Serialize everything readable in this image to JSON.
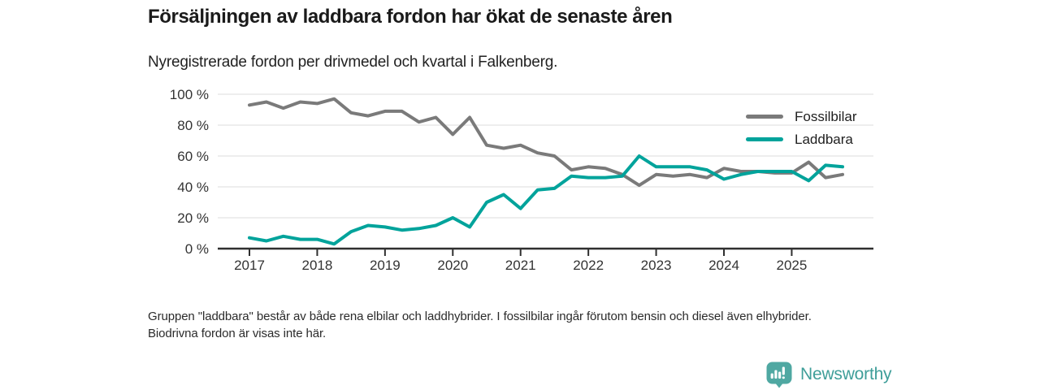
{
  "header": {
    "title": "Försäljningen av laddbara fordon har ökat de senaste åren",
    "subtitle": "Nyregistrerade fordon per drivmedel och kvartal i Falkenberg."
  },
  "chart_data": {
    "type": "line",
    "unit": "%",
    "x": [
      "2017 Q1",
      "2017 Q2",
      "2017 Q3",
      "2017 Q4",
      "2018 Q1",
      "2018 Q2",
      "2018 Q3",
      "2018 Q4",
      "2019 Q1",
      "2019 Q2",
      "2019 Q3",
      "2019 Q4",
      "2020 Q1",
      "2020 Q2",
      "2020 Q3",
      "2020 Q4",
      "2021 Q1",
      "2021 Q2",
      "2021 Q3",
      "2021 Q4",
      "2022 Q1",
      "2022 Q2",
      "2022 Q3",
      "2022 Q4",
      "2023 Q1",
      "2023 Q2",
      "2023 Q3",
      "2023 Q4",
      "2024 Q1",
      "2024 Q2",
      "2024 Q3",
      "2024 Q4",
      "2025 Q1",
      "2025 Q2",
      "2025 Q3",
      "2025 Q4"
    ],
    "series": [
      {
        "name": "Fossilbilar",
        "color": "#7a7a7a",
        "values": [
          93,
          95,
          91,
          95,
          94,
          97,
          88,
          86,
          89,
          89,
          82,
          85,
          74,
          85,
          67,
          65,
          67,
          62,
          60,
          51,
          53,
          52,
          48,
          41,
          48,
          47,
          48,
          46,
          52,
          50,
          50,
          49,
          49,
          56,
          46,
          48
        ]
      },
      {
        "name": "Laddbara",
        "color": "#00a39b",
        "values": [
          7,
          5,
          8,
          6,
          6,
          3,
          11,
          15,
          14,
          12,
          13,
          15,
          20,
          14,
          30,
          35,
          26,
          38,
          39,
          47,
          46,
          46,
          47,
          60,
          53,
          53,
          53,
          51,
          45,
          48,
          50,
          50,
          50,
          44,
          54,
          53
        ]
      }
    ],
    "ylim": [
      0,
      100
    ],
    "y_ticks": [
      100,
      80,
      60,
      40,
      20,
      0
    ],
    "y_tick_suffix": " %",
    "x_ticks": [
      "2017",
      "2018",
      "2019",
      "2020",
      "2021",
      "2022",
      "2023",
      "2024",
      "2025"
    ],
    "grid": "horizontal",
    "legend_position": "top-right"
  },
  "legend": [
    {
      "label": "Fossilbilar",
      "color": "#7a7a7a"
    },
    {
      "label": "Laddbara",
      "color": "#00a39b"
    }
  ],
  "footnote": {
    "text": "Gruppen \"laddbara\" består av både rena elbilar och laddhybrider. I fossilbilar ingår förutom bensin och diesel även elhybrider. Biodrivna fordon är visas inte här."
  },
  "branding": {
    "name": "Newsworthy",
    "logo_color": "#4fa8a2",
    "text_color": "#3f9e99"
  }
}
